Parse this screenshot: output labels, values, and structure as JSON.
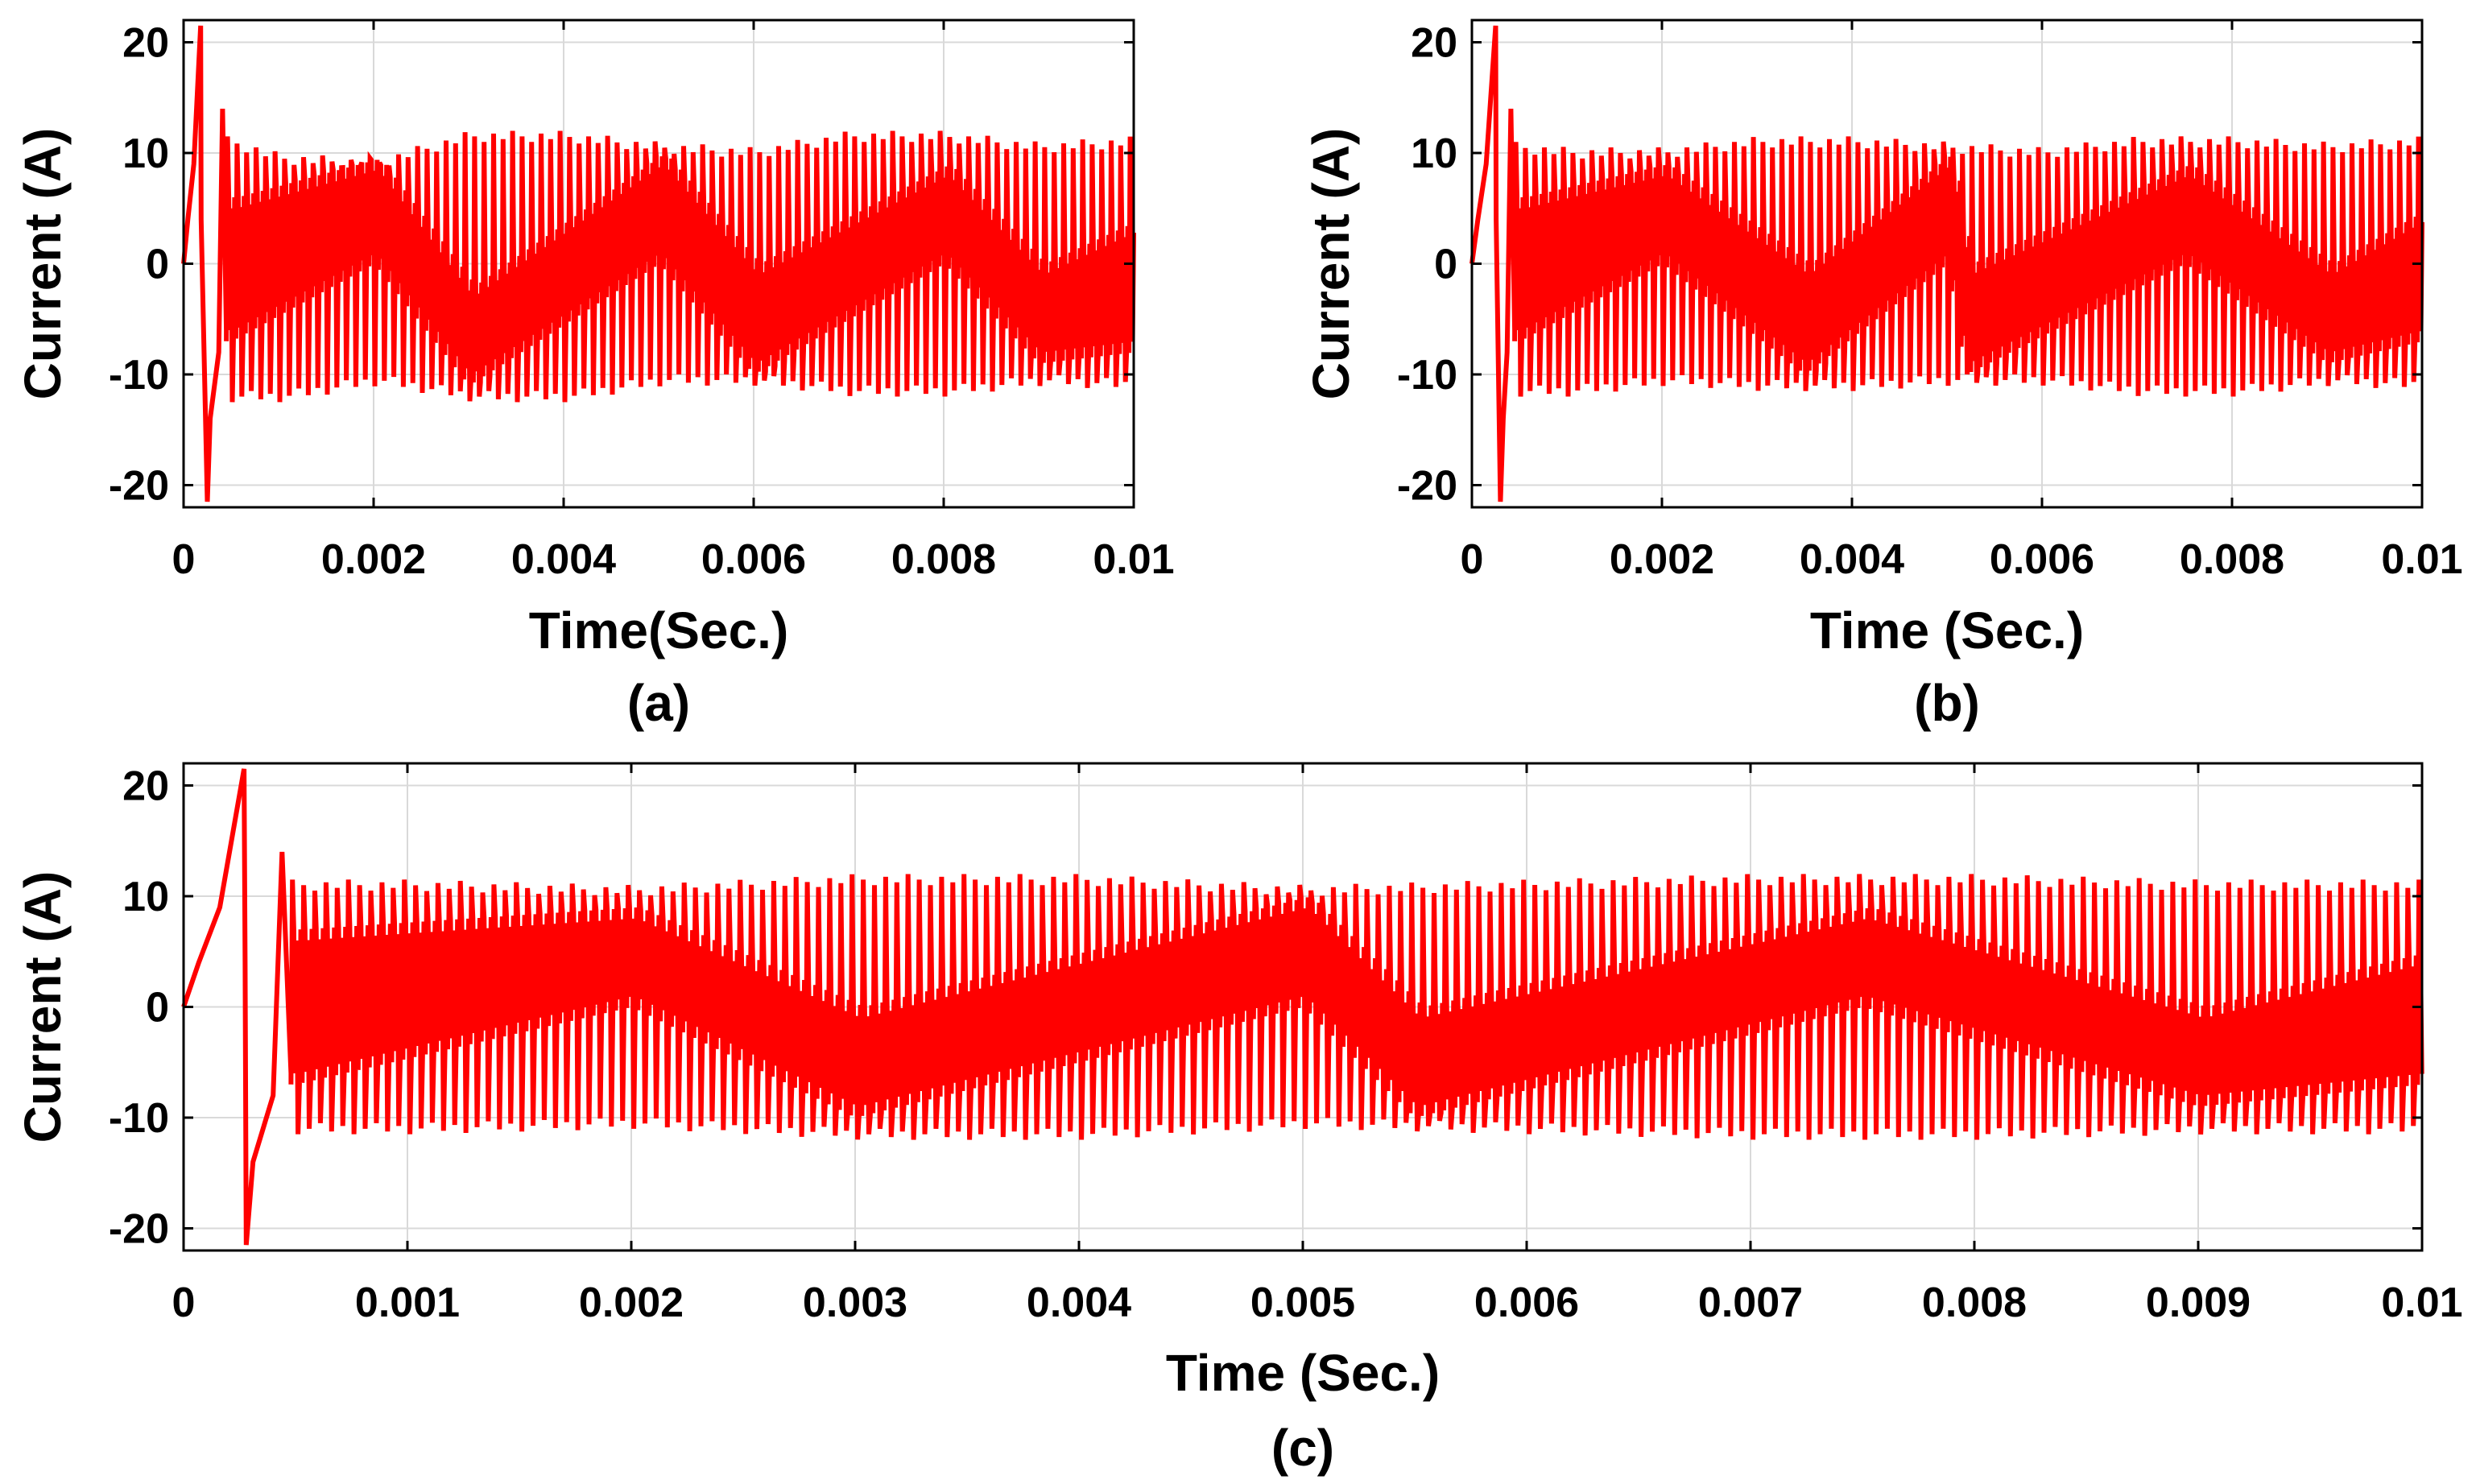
{
  "colors": {
    "series": "#ff0000",
    "grid": "#d9d9d9",
    "frame": "#000000"
  },
  "chart_data": [
    {
      "type": "line",
      "id": "a",
      "caption": "(a)",
      "xlabel": "Time(Sec.)",
      "ylabel": "Current (A)",
      "xlim": [
        0,
        0.01
      ],
      "ylim": [
        -22,
        22
      ],
      "xticks": [
        0,
        0.002,
        0.004,
        0.006,
        0.008,
        0.01
      ],
      "xtick_labels": [
        "0",
        "0.002",
        "0.004",
        "0.006",
        "0.008",
        "0.01"
      ],
      "yticks": [
        -20,
        -10,
        0,
        10,
        20
      ],
      "ytick_labels": [
        "-20",
        "-10",
        "0",
        "10",
        "20"
      ],
      "grid": true,
      "series": [
        {
          "name": "Current",
          "startup": {
            "peak_time": 0.00018,
            "peak": 21.5,
            "trough_time": 0.00025,
            "trough": -21.5,
            "settle_time": 0.00045
          },
          "switching_period": 0.0001,
          "envelope_upper": [
            [
              0.0005,
              11.5
            ],
            [
              0.001,
              10
            ],
            [
              0.002,
              9.5
            ],
            [
              0.003,
              12
            ],
            [
              0.004,
              12
            ],
            [
              0.005,
              11
            ],
            [
              0.006,
              10.5
            ],
            [
              0.007,
              12
            ],
            [
              0.008,
              12
            ],
            [
              0.009,
              11
            ],
            [
              0.01,
              11.5
            ]
          ],
          "envelope_lower": [
            [
              0.0005,
              -12.5
            ],
            [
              0.001,
              -12.5
            ],
            [
              0.002,
              -11
            ],
            [
              0.003,
              -12.5
            ],
            [
              0.004,
              -12.5
            ],
            [
              0.005,
              -11
            ],
            [
              0.006,
              -11
            ],
            [
              0.007,
              -12
            ],
            [
              0.008,
              -12
            ],
            [
              0.009,
              -11
            ],
            [
              0.01,
              -11.5
            ]
          ],
          "inner_upper": [
            [
              0.0005,
              6
            ],
            [
              0.002,
              9.5
            ],
            [
              0.003,
              -2
            ],
            [
              0.005,
              10
            ],
            [
              0.006,
              0
            ],
            [
              0.008,
              9
            ],
            [
              0.009,
              0
            ],
            [
              0.01,
              4
            ]
          ],
          "inner_lower": [
            [
              0.0005,
              -7
            ],
            [
              0.002,
              0
            ],
            [
              0.003,
              -11
            ],
            [
              0.005,
              0
            ],
            [
              0.006,
              -10
            ],
            [
              0.008,
              0
            ],
            [
              0.009,
              -9
            ],
            [
              0.01,
              -8
            ]
          ]
        }
      ]
    },
    {
      "type": "line",
      "id": "b",
      "caption": "(b)",
      "xlabel": "Time (Sec.)",
      "ylabel": "Current (A)",
      "xlim": [
        0,
        0.01
      ],
      "ylim": [
        -22,
        22
      ],
      "xticks": [
        0,
        0.002,
        0.004,
        0.006,
        0.008,
        0.01
      ],
      "xtick_labels": [
        "0",
        "0.002",
        "0.004",
        "0.006",
        "0.008",
        "0.01"
      ],
      "yticks": [
        -20,
        -10,
        0,
        10,
        20
      ],
      "ytick_labels": [
        "-20",
        "-10",
        "0",
        "10",
        "20"
      ],
      "grid": true,
      "series": [
        {
          "name": "Current",
          "startup": {
            "peak_time": 0.00025,
            "peak": 21.5,
            "trough_time": 0.0003,
            "trough": -21.5,
            "settle_time": 0.00045
          },
          "switching_period": 0.0001,
          "envelope_upper": [
            [
              0.0005,
              11
            ],
            [
              0.001,
              10.5
            ],
            [
              0.002,
              10.5
            ],
            [
              0.003,
              11.5
            ],
            [
              0.004,
              11.5
            ],
            [
              0.005,
              11
            ],
            [
              0.006,
              10.5
            ],
            [
              0.007,
              11.5
            ],
            [
              0.008,
              11.5
            ],
            [
              0.009,
              11
            ],
            [
              0.01,
              11.5
            ]
          ],
          "envelope_lower": [
            [
              0.0005,
              -12
            ],
            [
              0.001,
              -12
            ],
            [
              0.002,
              -11
            ],
            [
              0.003,
              -11.5
            ],
            [
              0.004,
              -11.5
            ],
            [
              0.005,
              -11
            ],
            [
              0.006,
              -11
            ],
            [
              0.007,
              -12
            ],
            [
              0.008,
              -12
            ],
            [
              0.009,
              -11
            ],
            [
              0.01,
              -11.5
            ]
          ],
          "inner_upper": [
            [
              0.0005,
              6
            ],
            [
              0.002,
              9
            ],
            [
              0.0035,
              0
            ],
            [
              0.005,
              10
            ],
            [
              0.0052,
              0
            ],
            [
              0.0075,
              9
            ],
            [
              0.009,
              0
            ],
            [
              0.01,
              5
            ]
          ],
          "inner_lower": [
            [
              0.0005,
              -7
            ],
            [
              0.002,
              0
            ],
            [
              0.0035,
              -10
            ],
            [
              0.005,
              0
            ],
            [
              0.0052,
              -10
            ],
            [
              0.0075,
              0
            ],
            [
              0.009,
              -9
            ],
            [
              0.01,
              -7
            ]
          ]
        }
      ]
    },
    {
      "type": "line",
      "id": "c",
      "caption": "(c)",
      "xlabel": "Time (Sec.)",
      "ylabel": "Current (A)",
      "xlim": [
        0,
        0.01
      ],
      "ylim": [
        -22,
        22
      ],
      "xticks": [
        0,
        0.001,
        0.002,
        0.003,
        0.004,
        0.005,
        0.006,
        0.007,
        0.008,
        0.009,
        0.01
      ],
      "xtick_labels": [
        "0",
        "0.001",
        "0.002",
        "0.003",
        "0.004",
        "0.005",
        "0.006",
        "0.007",
        "0.008",
        "0.009",
        "0.01"
      ],
      "yticks": [
        -20,
        -10,
        0,
        10,
        20
      ],
      "ytick_labels": [
        "-20",
        "-10",
        "0",
        "10",
        "20"
      ],
      "grid": true,
      "series": [
        {
          "name": "Current",
          "startup": {
            "peak_time": 0.00027,
            "peak": 21.5,
            "trough_time": 0.00028,
            "trough": -21.5,
            "settle_time": 0.00048
          },
          "switching_period": 5e-05,
          "envelope_upper": [
            [
              0.0005,
              11.5
            ],
            [
              0.001,
              11.5
            ],
            [
              0.002,
              11
            ],
            [
              0.003,
              12
            ],
            [
              0.004,
              12
            ],
            [
              0.005,
              11
            ],
            [
              0.006,
              11.5
            ],
            [
              0.007,
              12
            ],
            [
              0.008,
              12
            ],
            [
              0.009,
              11.5
            ],
            [
              0.01,
              11.5
            ]
          ],
          "envelope_lower": [
            [
              0.0005,
              -11.5
            ],
            [
              0.001,
              -11.5
            ],
            [
              0.002,
              -11
            ],
            [
              0.003,
              -12
            ],
            [
              0.004,
              -12
            ],
            [
              0.005,
              -11
            ],
            [
              0.006,
              -11.5
            ],
            [
              0.007,
              -12
            ],
            [
              0.008,
              -12
            ],
            [
              0.009,
              -11.5
            ],
            [
              0.01,
              -11.5
            ]
          ],
          "inner_upper": [
            [
              0.0005,
              7
            ],
            [
              0.002,
              9
            ],
            [
              0.003,
              0
            ],
            [
              0.005,
              10
            ],
            [
              0.0055,
              0
            ],
            [
              0.0075,
              9
            ],
            [
              0.009,
              0
            ],
            [
              0.01,
              5
            ]
          ],
          "inner_lower": [
            [
              0.0005,
              -7
            ],
            [
              0.002,
              0
            ],
            [
              0.003,
              -10
            ],
            [
              0.005,
              0
            ],
            [
              0.0055,
              -10
            ],
            [
              0.0075,
              0
            ],
            [
              0.009,
              -9
            ],
            [
              0.01,
              -7
            ]
          ]
        }
      ]
    }
  ]
}
